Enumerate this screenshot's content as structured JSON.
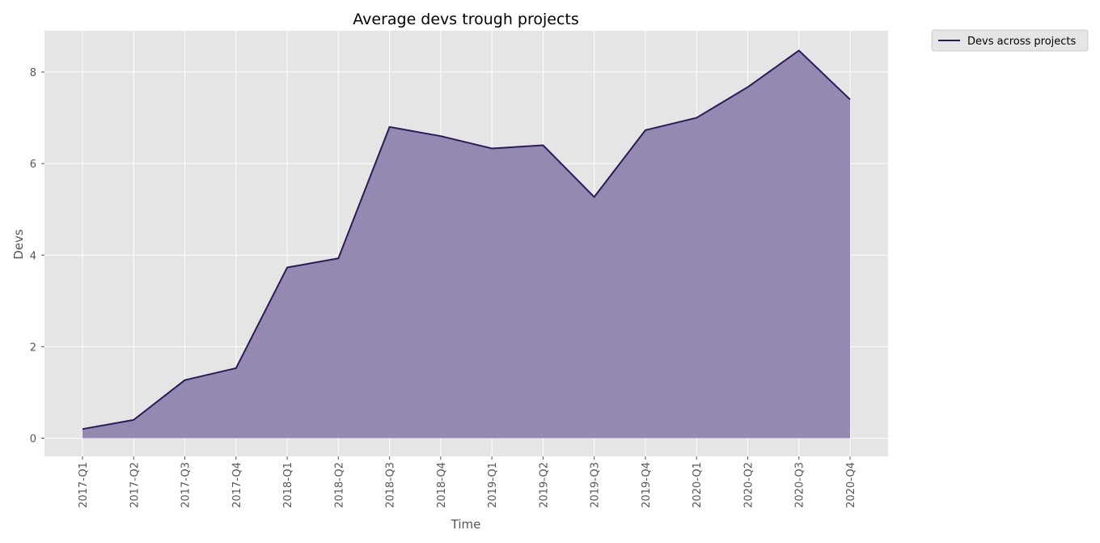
{
  "chart_data": {
    "type": "area",
    "title": "Average devs trough projects",
    "xlabel": "Time",
    "ylabel": "Devs",
    "categories": [
      "2017-Q1",
      "2017-Q2",
      "2017-Q3",
      "2017-Q4",
      "2018-Q1",
      "2018-Q2",
      "2018-Q3",
      "2018-Q4",
      "2019-Q1",
      "2019-Q2",
      "2019-Q3",
      "2019-Q4",
      "2020-Q1",
      "2020-Q2",
      "2020-Q3",
      "2020-Q4"
    ],
    "series": [
      {
        "name": "Devs across projects",
        "values": [
          0.2,
          0.4,
          1.27,
          1.53,
          3.73,
          3.93,
          6.8,
          6.6,
          6.33,
          6.4,
          5.27,
          6.73,
          7.0,
          7.67,
          8.47,
          7.4
        ]
      }
    ],
    "ylim": [
      -0.4,
      8.9
    ],
    "yticks": [
      0,
      2,
      4,
      6,
      8
    ],
    "grid": true,
    "legend_position": "outside-top-right",
    "colors": {
      "line": "#2a1a5e",
      "fill": "#9689b1",
      "plot_background": "#e5e5e5",
      "grid": "#ffffff"
    }
  }
}
